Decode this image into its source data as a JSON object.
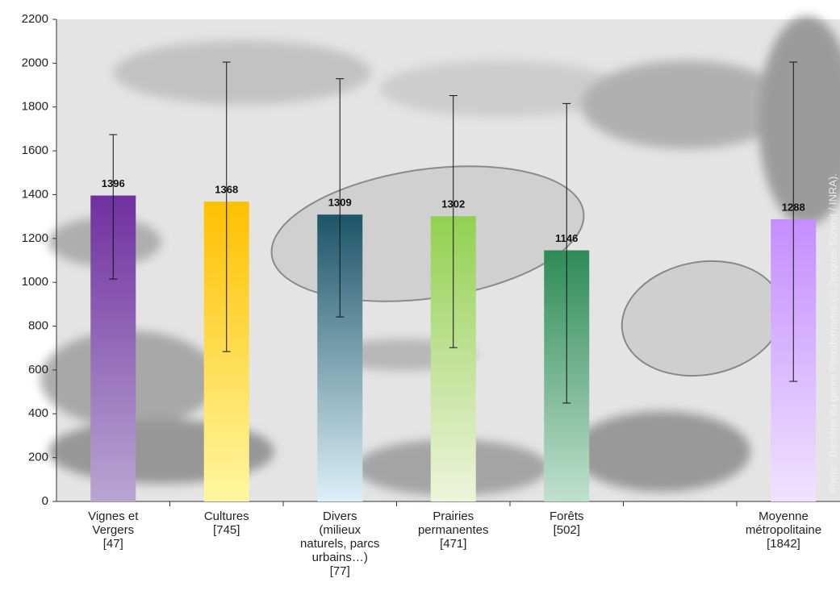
{
  "chart_data": {
    "type": "bar",
    "categories": [
      "Vignes et\nVergers\n[47]",
      "Cultures\n[745]",
      "Divers\n(milieux\nnaturels, parcs\nurbains…)\n[77]",
      "Prairies\npermanentes\n[471]",
      "Forêts\n[502]",
      null,
      "Moyenne\nmétropolitaine\n[1842]"
    ],
    "values": [
      1396,
      1368,
      1309,
      1302,
      1146,
      null,
      1288
    ],
    "errors_minus": [
      381,
      684,
      467,
      600,
      697,
      null,
      740
    ],
    "errors_plus": [
      278,
      637,
      620,
      550,
      670,
      null,
      717
    ],
    "colors": [
      [
        "#7030a0",
        "#b9a6d2"
      ],
      [
        "#ffc000",
        "#fff7a0"
      ],
      [
        "#1d5468",
        "#dcf0f8"
      ],
      [
        "#92d050",
        "#eef4dc"
      ],
      [
        "#2e8b57",
        "#bfe0cd"
      ],
      null,
      [
        "#c48dff",
        "#f0e2ff"
      ]
    ],
    "ylim": [
      0,
      2200
    ],
    "yticks": [
      0,
      200,
      400,
      600,
      800,
      1000,
      1200,
      1400,
      1600,
      1800,
      2000,
      2200
    ],
    "annotation": "Photo : Bactérie du genre Pseudomonas (© Jacques Schmit / INRA)."
  }
}
